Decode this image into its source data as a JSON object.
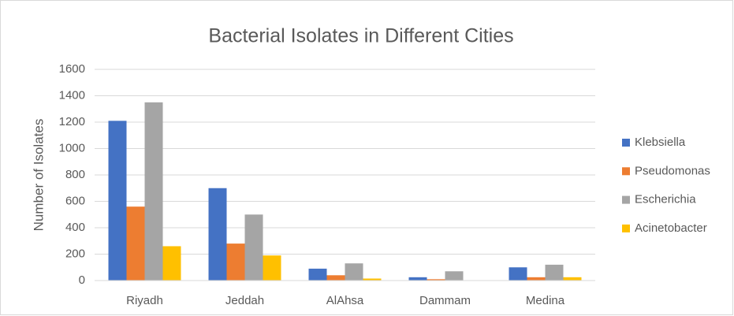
{
  "chart_data": {
    "type": "bar",
    "title": "Bacterial Isolates in Different Cities",
    "y_label": "Number of Isolates",
    "categories": [
      "Riyadh",
      "Jeddah",
      "AlAhsa",
      "Dammam",
      "Medina"
    ],
    "series": [
      {
        "name": "Klebsiella",
        "color": "#4472c4",
        "values": [
          1210,
          700,
          90,
          25,
          100
        ]
      },
      {
        "name": "Pseudomonas",
        "color": "#ed7d31",
        "values": [
          560,
          280,
          40,
          10,
          25
        ]
      },
      {
        "name": "Escherichia",
        "color": "#a5a5a5",
        "values": [
          1350,
          500,
          130,
          70,
          120
        ]
      },
      {
        "name": "Acinetobacter",
        "color": "#ffc000",
        "values": [
          260,
          190,
          15,
          0,
          25
        ]
      }
    ],
    "ylim": [
      0,
      1600
    ],
    "yticks": [
      0,
      200,
      400,
      600,
      800,
      1000,
      1200,
      1400,
      1600
    ],
    "grid": true,
    "legend": "right"
  }
}
